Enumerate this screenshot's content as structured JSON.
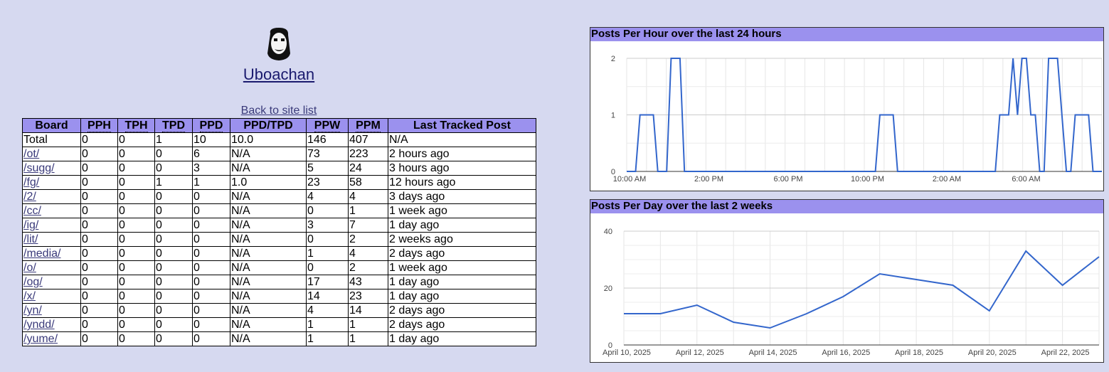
{
  "site": {
    "title": "Uboachan",
    "back_link": "Back to site list"
  },
  "table": {
    "headers": [
      "Board",
      "PPH",
      "TPH",
      "TPD",
      "PPD",
      "PPD/TPD",
      "PPW",
      "PPM",
      "Last Tracked Post"
    ],
    "rows": [
      [
        "Total",
        "0",
        "0",
        "1",
        "10",
        "10.0",
        "146",
        "407",
        "N/A"
      ],
      [
        "/ot/",
        "0",
        "0",
        "0",
        "6",
        "N/A",
        "73",
        "223",
        "2 hours ago"
      ],
      [
        "/sugg/",
        "0",
        "0",
        "0",
        "3",
        "N/A",
        "5",
        "24",
        "3 hours ago"
      ],
      [
        "/fg/",
        "0",
        "0",
        "1",
        "1",
        "1.0",
        "23",
        "58",
        "12 hours ago"
      ],
      [
        "/2/",
        "0",
        "0",
        "0",
        "0",
        "N/A",
        "4",
        "4",
        "3 days ago"
      ],
      [
        "/cc/",
        "0",
        "0",
        "0",
        "0",
        "N/A",
        "0",
        "1",
        "1 week ago"
      ],
      [
        "/ig/",
        "0",
        "0",
        "0",
        "0",
        "N/A",
        "3",
        "7",
        "1 day ago"
      ],
      [
        "/lit/",
        "0",
        "0",
        "0",
        "0",
        "N/A",
        "0",
        "2",
        "2 weeks ago"
      ],
      [
        "/media/",
        "0",
        "0",
        "0",
        "0",
        "N/A",
        "1",
        "4",
        "2 days ago"
      ],
      [
        "/o/",
        "0",
        "0",
        "0",
        "0",
        "N/A",
        "0",
        "2",
        "1 week ago"
      ],
      [
        "/og/",
        "0",
        "0",
        "0",
        "0",
        "N/A",
        "17",
        "43",
        "1 day ago"
      ],
      [
        "/x/",
        "0",
        "0",
        "0",
        "0",
        "N/A",
        "14",
        "23",
        "1 day ago"
      ],
      [
        "/yn/",
        "0",
        "0",
        "0",
        "0",
        "N/A",
        "4",
        "14",
        "2 days ago"
      ],
      [
        "/yndd/",
        "0",
        "0",
        "0",
        "0",
        "N/A",
        "1",
        "1",
        "2 days ago"
      ],
      [
        "/yume/",
        "0",
        "0",
        "0",
        "0",
        "N/A",
        "1",
        "1",
        "1 day ago"
      ]
    ]
  },
  "colors": {
    "background": "#d6d9f0",
    "header": "#9b91ee",
    "line": "#3366cc"
  },
  "chart_data": [
    {
      "type": "line",
      "title": "Posts Per Hour over the last 24 hours",
      "xlabel": "",
      "ylabel": "",
      "x_ticks": [
        "10:00 AM",
        "2:00 PM",
        "6:00 PM",
        "10:00 PM",
        "2:00 AM",
        "6:00 AM"
      ],
      "y_ticks": [
        "0",
        "1",
        "2"
      ],
      "ylim": [
        0,
        2
      ],
      "grid": true,
      "series": [
        {
          "values": [
            0,
            0,
            0,
            1,
            1,
            1,
            1,
            0,
            0,
            0,
            2,
            2,
            2,
            0,
            0,
            0,
            0,
            0,
            0,
            0,
            0,
            0,
            0,
            0,
            0,
            0,
            0,
            0,
            0,
            0,
            0,
            0,
            0,
            0,
            0,
            0,
            0,
            0,
            0,
            0,
            0,
            0,
            0,
            0,
            0,
            0,
            0,
            0,
            0,
            0,
            0,
            0,
            0,
            0,
            0,
            0,
            0,
            1,
            1,
            1,
            1,
            0,
            0,
            0,
            0,
            0,
            0,
            0,
            0,
            0,
            0,
            0,
            0,
            0,
            0,
            0,
            0,
            0,
            0,
            0,
            0,
            0,
            0,
            0,
            1,
            1,
            1,
            2,
            1,
            2,
            2,
            1,
            1,
            0,
            0,
            2,
            2,
            2,
            1,
            0,
            0,
            1,
            1,
            1,
            1,
            0,
            0,
            0
          ]
        }
      ]
    },
    {
      "type": "line",
      "title": "Posts Per Day over the last 2 weeks",
      "xlabel": "",
      "ylabel": "",
      "x_ticks": [
        "April 10, 2025",
        "April 12, 2025",
        "April 14, 2025",
        "April 16, 2025",
        "April 18, 2025",
        "April 20, 2025",
        "April 22, 2025"
      ],
      "y_ticks": [
        "0",
        "20",
        "40"
      ],
      "ylim": [
        0,
        40
      ],
      "grid": true,
      "series": [
        {
          "x": [
            "April 10, 2025",
            "April 11, 2025",
            "April 12, 2025",
            "April 13, 2025",
            "April 14, 2025",
            "April 15, 2025",
            "April 16, 2025",
            "April 17, 2025",
            "April 18, 2025",
            "April 19, 2025",
            "April 20, 2025",
            "April 21, 2025",
            "April 22, 2025",
            "April 23, 2025"
          ],
          "values": [
            11,
            11,
            14,
            8,
            6,
            11,
            17,
            25,
            23,
            21,
            12,
            33,
            21,
            31
          ]
        }
      ]
    }
  ]
}
